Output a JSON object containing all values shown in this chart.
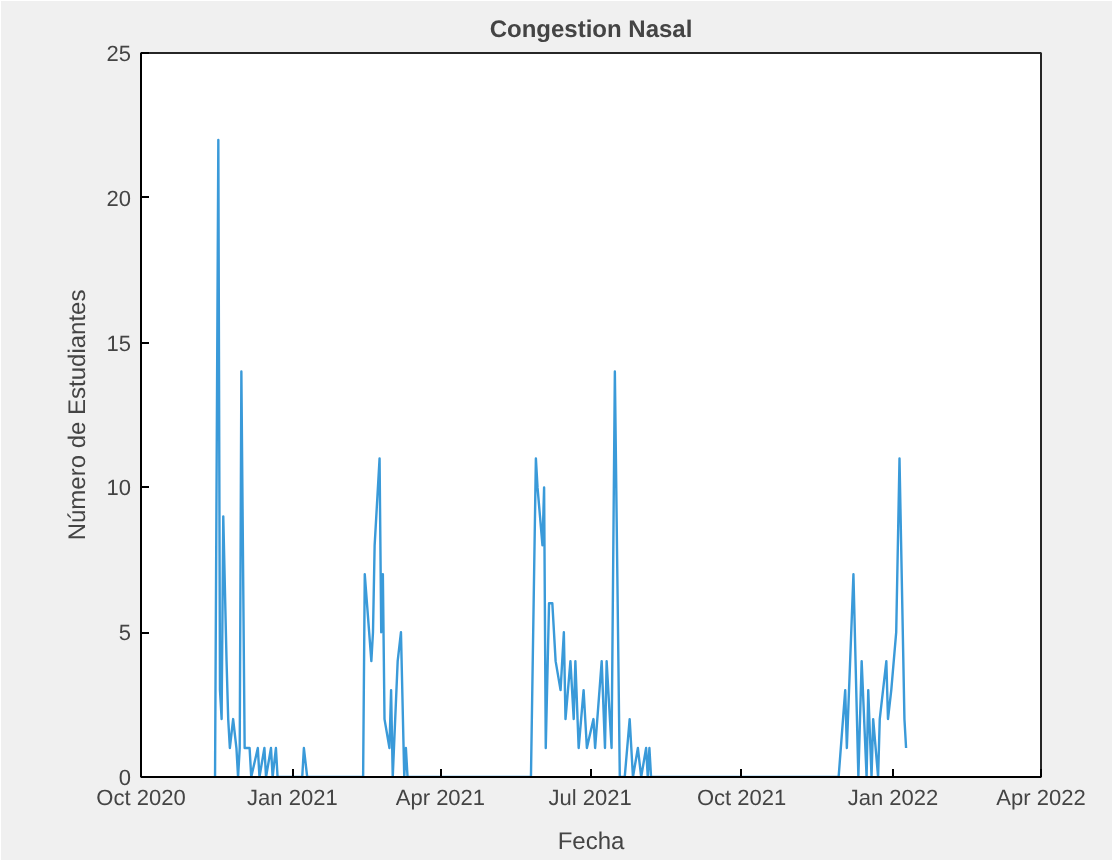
{
  "chart_data": {
    "type": "line",
    "title": "Congestion Nasal",
    "xlabel": "Fecha",
    "ylabel": "Número de Estudiantes",
    "x": [
      "2020-11-15",
      "2020-11-17",
      "2020-11-18",
      "2020-11-19",
      "2020-11-20",
      "2020-11-22",
      "2020-11-23",
      "2020-11-24",
      "2020-11-26",
      "2020-11-28",
      "2020-11-29",
      "2020-11-30",
      "2020-12-01",
      "2020-12-03",
      "2020-12-06",
      "2020-12-07",
      "2020-12-11",
      "2020-12-12",
      "2020-12-15",
      "2020-12-16",
      "2020-12-19",
      "2020-12-20",
      "2020-12-22",
      "2020-12-23",
      "2021-01-07",
      "2021-01-08",
      "2021-01-10",
      "2021-02-13",
      "2021-02-14",
      "2021-02-18",
      "2021-02-19",
      "2021-02-20",
      "2021-02-23",
      "2021-02-24",
      "2021-02-25",
      "2021-02-26",
      "2021-03-01",
      "2021-03-02",
      "2021-03-03",
      "2021-03-06",
      "2021-03-08",
      "2021-03-10",
      "2021-03-11",
      "2021-03-12",
      "2021-05-26",
      "2021-05-29",
      "2021-05-30",
      "2021-06-02",
      "2021-06-03",
      "2021-06-04",
      "2021-06-06",
      "2021-06-08",
      "2021-06-10",
      "2021-06-13",
      "2021-06-15",
      "2021-06-16",
      "2021-06-19",
      "2021-06-21",
      "2021-06-22",
      "2021-06-24",
      "2021-06-27",
      "2021-06-29",
      "2021-07-03",
      "2021-07-04",
      "2021-07-08",
      "2021-07-10",
      "2021-07-11",
      "2021-07-14",
      "2021-07-16",
      "2021-07-19",
      "2021-07-22",
      "2021-07-25",
      "2021-07-27",
      "2021-07-30",
      "2021-08-01",
      "2021-08-04",
      "2021-08-05",
      "2021-08-06",
      "2021-08-07",
      "2021-11-29",
      "2021-12-03",
      "2021-12-04",
      "2021-12-08",
      "2021-12-11",
      "2021-12-13",
      "2021-12-16",
      "2021-12-17",
      "2021-12-19",
      "2021-12-20",
      "2021-12-23",
      "2021-12-24",
      "2021-12-28",
      "2021-12-29",
      "2021-12-31",
      "2022-01-03",
      "2022-01-05",
      "2022-01-08",
      "2022-01-09"
    ],
    "series": [
      {
        "color": "#3a9ad9",
        "values": [
          0,
          22,
          3,
          2,
          9,
          4,
          2,
          1,
          2,
          1,
          0,
          1,
          14,
          1,
          1,
          0,
          1,
          0,
          1,
          0,
          1,
          0,
          1,
          0,
          0,
          1,
          0,
          0,
          7,
          4,
          5,
          8,
          11,
          5,
          7,
          2,
          1,
          3,
          0,
          4,
          5,
          0,
          1,
          0,
          0,
          11,
          10,
          8,
          10,
          1,
          6,
          6,
          4,
          3,
          5,
          2,
          4,
          2,
          4,
          1,
          3,
          1,
          2,
          1,
          4,
          1,
          4,
          1,
          14,
          0,
          0,
          2,
          0,
          1,
          0,
          1,
          0,
          1,
          0,
          0,
          3,
          1,
          7,
          0,
          4,
          0,
          3,
          0,
          2,
          0,
          2,
          4,
          2,
          3,
          5,
          11,
          2,
          1
        ]
      }
    ],
    "xlim": [
      "2020-10-01",
      "2022-04-01"
    ],
    "xticks": [
      {
        "value": "2020-10-01",
        "label": "Oct 2020"
      },
      {
        "value": "2021-01-01",
        "label": "Jan 2021"
      },
      {
        "value": "2021-04-01",
        "label": "Apr 2021"
      },
      {
        "value": "2021-07-01",
        "label": "Jul 2021"
      },
      {
        "value": "2021-10-01",
        "label": "Oct 2021"
      },
      {
        "value": "2022-01-01",
        "label": "Jan 2022"
      },
      {
        "value": "2022-04-01",
        "label": "Apr 2022"
      }
    ],
    "ylim": [
      0,
      25
    ],
    "yticks": [
      0,
      5,
      10,
      15,
      20,
      25
    ],
    "grid": false,
    "marker": "none",
    "line_style": "solid"
  }
}
